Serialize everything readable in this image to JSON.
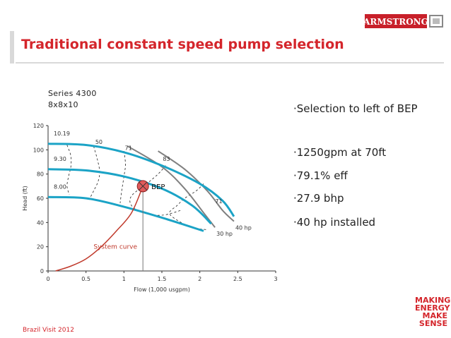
{
  "header": {
    "title": "Traditional constant speed pump selection",
    "logo_text": "ARMSTRONG"
  },
  "chart_title": {
    "series": "Series 4300",
    "size": "8x8x10"
  },
  "bullets": [
    "·Selection to left of BEP",
    "·1250gpm at 70ft",
    "·79.1% eff",
    "·27.9 bhp",
    "·40 hp installed"
  ],
  "footer": "Brazil Visit 2012",
  "tagline": [
    "MAKING",
    "ENERGY",
    "MAKE",
    "SENSE"
  ],
  "colors": {
    "brand_red": "#d4252b",
    "impeller_curve": "#1ba3c6",
    "power_curve": "#808080",
    "system_curve": "#c0392b"
  },
  "chart_data": {
    "type": "line",
    "title": "Series 4300 8x8x10",
    "xlabel": "Flow (1,000 usgpm)",
    "ylabel": "Head (ft)",
    "xlim": [
      0,
      3
    ],
    "ylim": [
      0,
      120
    ],
    "x_ticks": [
      "0",
      "0.5",
      "1",
      "1.5",
      "2",
      "2.5",
      "3"
    ],
    "y_ticks": [
      "0",
      "20",
      "40",
      "60",
      "80",
      "100",
      "120"
    ],
    "impeller_curves": [
      {
        "label": "10.19",
        "points": [
          [
            0,
            105
          ],
          [
            0.5,
            104
          ],
          [
            1,
            98
          ],
          [
            1.5,
            87
          ],
          [
            2,
            72
          ],
          [
            2.3,
            58
          ],
          [
            2.45,
            45
          ]
        ]
      },
      {
        "label": "9.30",
        "points": [
          [
            0,
            84
          ],
          [
            0.5,
            83
          ],
          [
            1,
            78
          ],
          [
            1.5,
            68
          ],
          [
            1.9,
            54
          ],
          [
            2.15,
            39
          ]
        ]
      },
      {
        "label": "8.00",
        "points": [
          [
            0,
            61
          ],
          [
            0.5,
            60
          ],
          [
            1,
            53
          ],
          [
            1.5,
            44
          ],
          [
            2.05,
            33
          ]
        ]
      }
    ],
    "power_curves": [
      {
        "label": "30 hp",
        "points": [
          [
            1.05,
            103
          ],
          [
            1.5,
            86
          ],
          [
            1.8,
            68
          ],
          [
            2.05,
            48
          ],
          [
            2.2,
            36
          ]
        ]
      },
      {
        "label": "40 hp",
        "points": [
          [
            1.45,
            99
          ],
          [
            1.8,
            84
          ],
          [
            2.1,
            66
          ],
          [
            2.3,
            50
          ],
          [
            2.45,
            41
          ]
        ]
      }
    ],
    "efficiency_labels": [
      {
        "label": "50",
        "x": 0.67,
        "y": 105
      },
      {
        "label": "71",
        "x": 1.06,
        "y": 100
      },
      {
        "label": "83",
        "x": 1.56,
        "y": 91
      },
      {
        "label": "71",
        "x": 2.25,
        "y": 56
      }
    ],
    "system_curve": {
      "label": "System curve",
      "points": [
        [
          0.1,
          0
        ],
        [
          0.3,
          4
        ],
        [
          0.5,
          10
        ],
        [
          0.7,
          20
        ],
        [
          0.9,
          33
        ],
        [
          1.1,
          48
        ],
        [
          1.25,
          70
        ]
      ]
    },
    "operating_point": {
      "label": "BEP",
      "x": 1.25,
      "y": 70
    }
  }
}
